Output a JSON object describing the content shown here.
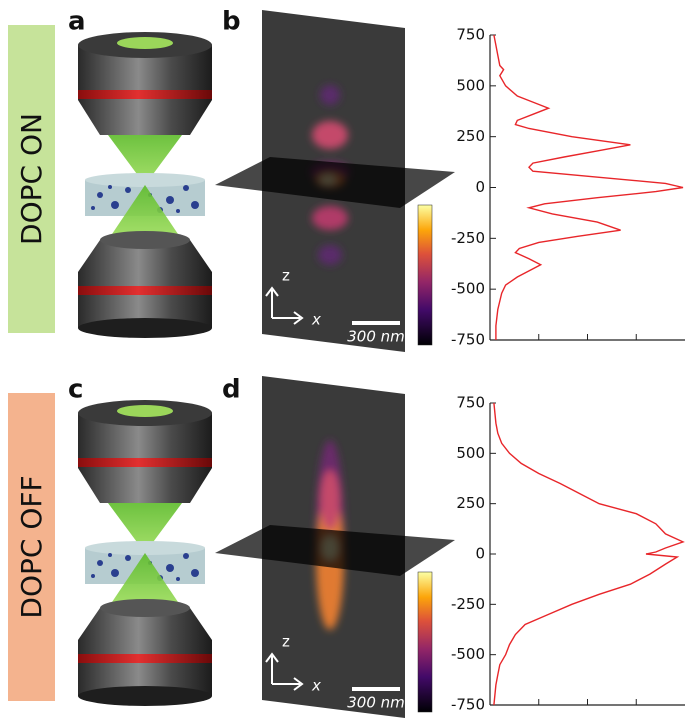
{
  "panel_labels": [
    "a",
    "b",
    "c",
    "d"
  ],
  "conditions": [
    "DOPC ON",
    "DOPC OFF"
  ],
  "axis_z": "z",
  "axis_x": "x",
  "scale_bar": "300 nm",
  "chart_data": [
    {
      "type": "line",
      "orientation": "vertical",
      "x": [
        750,
        700,
        650,
        600,
        580,
        550,
        500,
        450,
        420,
        390,
        360,
        330,
        310,
        290,
        250,
        210,
        180,
        150,
        120,
        100,
        80,
        50,
        20,
        0,
        -20,
        -50,
        -80,
        -100,
        -130,
        -170,
        -210,
        -240,
        -270,
        -300,
        -320,
        -350,
        -380,
        -410,
        -440,
        -480,
        -520,
        -600,
        -680,
        -750
      ],
      "xlim": [
        -750,
        750
      ],
      "xticks": [
        750,
        500,
        250,
        0,
        -250,
        -500,
        -750
      ],
      "ylim": [
        0,
        1
      ],
      "yticks": [
        0.25,
        0.5,
        0.75
      ],
      "ytick_labels": false,
      "color": "#e8262a",
      "values": [
        0.02,
        0.03,
        0.04,
        0.05,
        0.07,
        0.05,
        0.08,
        0.14,
        0.22,
        0.3,
        0.22,
        0.14,
        0.13,
        0.2,
        0.42,
        0.72,
        0.55,
        0.38,
        0.22,
        0.2,
        0.22,
        0.56,
        0.9,
        0.99,
        0.85,
        0.55,
        0.28,
        0.2,
        0.32,
        0.55,
        0.67,
        0.45,
        0.25,
        0.15,
        0.13,
        0.2,
        0.26,
        0.2,
        0.14,
        0.08,
        0.06,
        0.04,
        0.03,
        0.03
      ]
    },
    {
      "type": "line",
      "orientation": "vertical",
      "x": [
        750,
        650,
        600,
        550,
        500,
        450,
        400,
        350,
        300,
        250,
        200,
        150,
        100,
        60,
        30,
        10,
        0,
        -15,
        -50,
        -100,
        -150,
        -200,
        -250,
        -300,
        -350,
        -400,
        -450,
        -500,
        -550,
        -600,
        -650,
        -750
      ],
      "xlim": [
        -750,
        750
      ],
      "xticks": [
        750,
        500,
        250,
        0,
        -250,
        -500,
        -750
      ],
      "ylim": [
        0,
        1
      ],
      "yticks": [
        0.25,
        0.5,
        0.75
      ],
      "ytick_labels": false,
      "color": "#e8262a",
      "values": [
        0.02,
        0.03,
        0.04,
        0.06,
        0.1,
        0.16,
        0.25,
        0.36,
        0.46,
        0.56,
        0.75,
        0.85,
        0.9,
        0.99,
        0.9,
        0.85,
        0.8,
        0.96,
        0.9,
        0.82,
        0.72,
        0.56,
        0.42,
        0.3,
        0.18,
        0.13,
        0.1,
        0.08,
        0.05,
        0.04,
        0.03,
        0.02
      ]
    }
  ]
}
